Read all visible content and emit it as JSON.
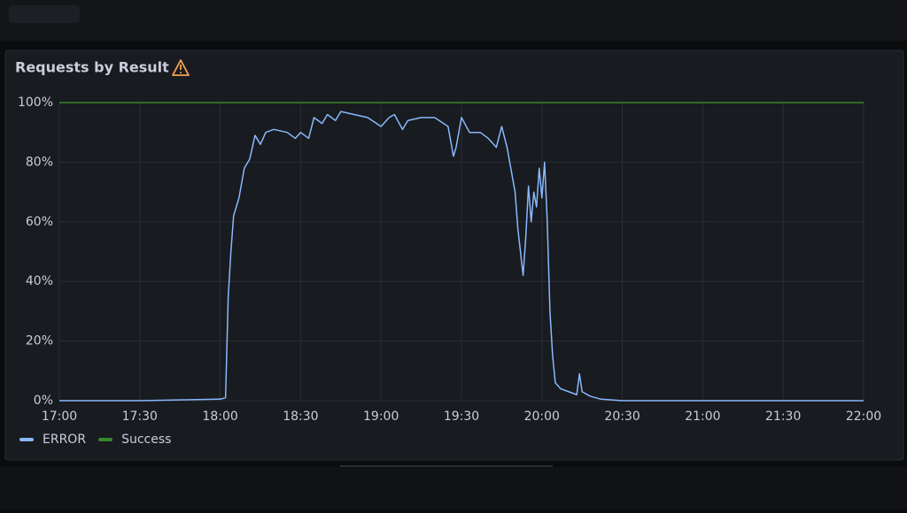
{
  "chart_data": {
    "type": "line",
    "title": "Requests by Result",
    "x": [
      "17:00",
      "17:30",
      "18:00",
      "18:02",
      "18:03",
      "18:04",
      "18:05",
      "18:07",
      "18:09",
      "18:11",
      "18:12",
      "18:13",
      "18:15",
      "18:17",
      "18:20",
      "18:25",
      "18:28",
      "18:30",
      "18:33",
      "18:35",
      "18:38",
      "18:40",
      "18:43",
      "18:45",
      "18:50",
      "18:55",
      "19:00",
      "19:03",
      "19:05",
      "19:08",
      "19:10",
      "19:15",
      "19:20",
      "19:25",
      "19:27",
      "19:28",
      "19:30",
      "19:33",
      "19:37",
      "19:40",
      "19:43",
      "19:45",
      "19:47",
      "19:48",
      "19:50",
      "19:51",
      "19:53",
      "19:54",
      "19:55",
      "19:56",
      "19:57",
      "19:58",
      "19:59",
      "20:00",
      "20:01",
      "20:02",
      "20:03",
      "20:04",
      "20:05",
      "20:07",
      "20:10",
      "20:13",
      "20:14",
      "20:15",
      "20:18",
      "20:22",
      "20:30",
      "21:00",
      "21:30",
      "22:00"
    ],
    "series": [
      {
        "name": "ERROR",
        "color": "#8ab8ff",
        "values": [
          0,
          0,
          0.5,
          1,
          35,
          50,
          62,
          68,
          78,
          81,
          85,
          89,
          86,
          90,
          91,
          90,
          88,
          90,
          88,
          95,
          93,
          96,
          94,
          97,
          96,
          95,
          92,
          95,
          96,
          91,
          94,
          95,
          95,
          92,
          82,
          85,
          95,
          90,
          90,
          88,
          85,
          92,
          85,
          80,
          70,
          58,
          42,
          55,
          72,
          60,
          70,
          65,
          78,
          68,
          80,
          60,
          30,
          15,
          6,
          4,
          3,
          2,
          9,
          3,
          1.5,
          0.5,
          0,
          0,
          0,
          0
        ]
      },
      {
        "name": "Success",
        "color": "#37872d",
        "values": [
          100,
          100,
          100,
          100,
          100,
          100,
          100,
          100,
          100,
          100,
          100,
          100,
          100,
          100,
          100,
          100,
          100,
          100,
          100,
          100,
          100,
          100,
          100,
          100,
          100,
          100,
          100,
          100,
          100,
          100,
          100,
          100,
          100,
          100,
          100,
          100,
          100,
          100,
          100,
          100,
          100,
          100,
          100,
          100,
          100,
          100,
          100,
          100,
          100,
          100,
          100,
          100,
          100,
          100,
          100,
          100,
          100,
          100,
          100,
          100,
          100,
          100,
          100,
          100,
          100,
          100,
          100,
          100,
          100,
          100
        ]
      }
    ],
    "xlim": [
      "17:00",
      "22:00"
    ],
    "xticks": [
      "17:00",
      "17:30",
      "18:00",
      "18:30",
      "19:00",
      "19:30",
      "20:00",
      "20:30",
      "21:00",
      "21:30",
      "22:00"
    ],
    "ylim": [
      0,
      100
    ],
    "yticks": [
      {
        "value": 0,
        "label": "0%"
      },
      {
        "value": 20,
        "label": "20%"
      },
      {
        "value": 40,
        "label": "40%"
      },
      {
        "value": 60,
        "label": "60%"
      },
      {
        "value": 80,
        "label": "80%"
      },
      {
        "value": 100,
        "label": "100%"
      }
    ],
    "grid": true,
    "legend": "bottom-left"
  }
}
